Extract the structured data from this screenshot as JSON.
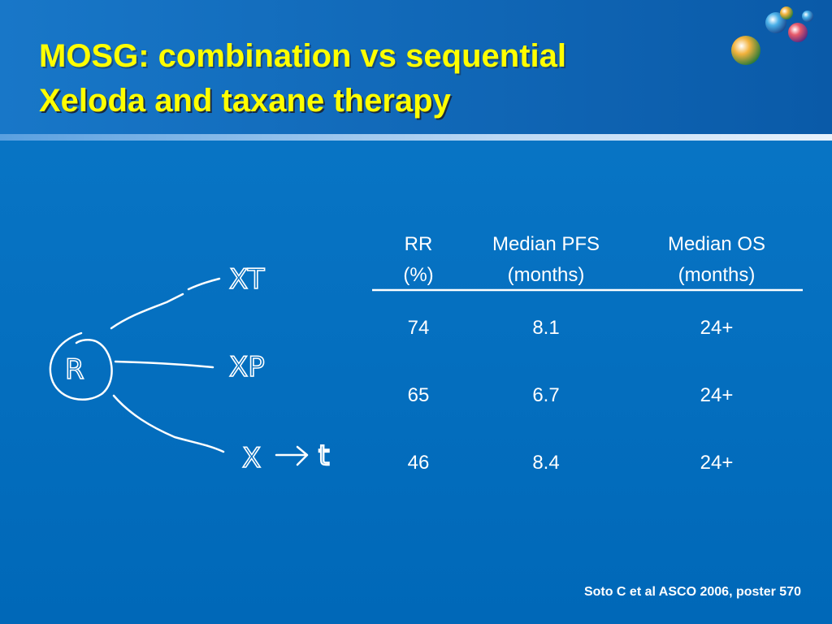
{
  "title": {
    "lines": [
      "MOSG: combination vs sequential",
      "Xeloda and taxane therapy"
    ]
  },
  "table": {
    "headers": [
      [
        "RR",
        "(%)"
      ],
      [
        "Median PFS",
        "(months)"
      ],
      [
        "Median OS",
        "(months)"
      ]
    ],
    "rows": [
      [
        74,
        8.1,
        "24+"
      ],
      [
        65,
        6.7,
        "24+"
      ],
      [
        46,
        8.4,
        "24+"
      ]
    ]
  },
  "diagram": {
    "start": "R",
    "arms": [
      "XT",
      "XP",
      "X",
      "t"
    ]
  },
  "citation": "Soto C et al ASCO 2006, poster 570"
}
